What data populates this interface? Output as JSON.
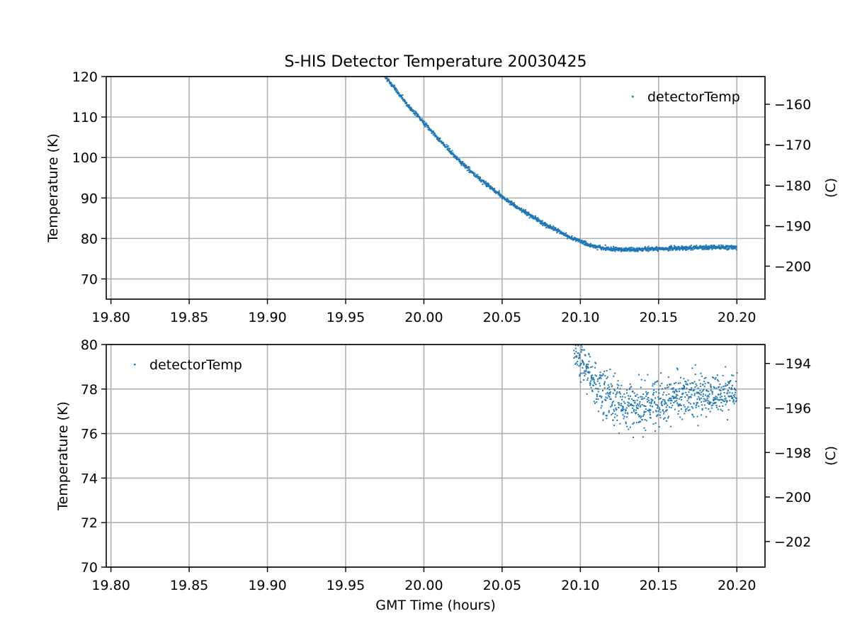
{
  "figure_title": "S-HIS Detector Temperature 20030425",
  "colors": {
    "series": "#1f77b4",
    "grid": "#b0b0b0",
    "axes": "#000000"
  },
  "chart_data": [
    {
      "type": "scatter",
      "title": "S-HIS Detector Temperature 20030425",
      "xlabel": "",
      "ylabel": "Temperature (K)",
      "y2label": "(C)",
      "xlim": [
        19.797,
        20.218
      ],
      "ylim": [
        65,
        120
      ],
      "y2lim": [
        -208.15,
        -153.15
      ],
      "xticks": [
        "19.80",
        "19.85",
        "19.90",
        "19.95",
        "20.00",
        "20.05",
        "20.10",
        "20.15",
        "20.20"
      ],
      "yticks": [
        "70",
        "80",
        "90",
        "100",
        "110",
        "120"
      ],
      "y2ticks": [
        "−160",
        "−170",
        "−180",
        "−190",
        "−200"
      ],
      "grid": true,
      "legend_position": "upper right",
      "series": [
        {
          "name": "detectorTemp",
          "marker": "dot",
          "x": [
            19.975,
            19.98,
            19.985,
            19.99,
            19.995,
            20.0,
            20.005,
            20.01,
            20.015,
            20.02,
            20.025,
            20.03,
            20.035,
            20.04,
            20.045,
            20.05,
            20.055,
            20.06,
            20.065,
            20.07,
            20.075,
            20.08,
            20.085,
            20.09,
            20.095,
            20.1,
            20.105,
            20.11,
            20.115,
            20.12,
            20.125,
            20.13,
            20.135,
            20.14,
            20.145,
            20.15,
            20.155,
            20.16,
            20.165,
            20.17,
            20.175,
            20.18,
            20.185,
            20.19,
            20.195,
            20.2
          ],
          "y": [
            120.0,
            117.8,
            115.2,
            112.8,
            110.7,
            108.6,
            106.5,
            104.3,
            102.3,
            100.2,
            98.3,
            96.6,
            94.9,
            93.4,
            91.9,
            90.4,
            89.0,
            87.6,
            86.4,
            85.2,
            84.0,
            83.0,
            82.0,
            81.0,
            80.0,
            79.3,
            78.5,
            78.0,
            77.6,
            77.4,
            77.3,
            77.2,
            77.2,
            77.3,
            77.4,
            77.5,
            77.5,
            77.6,
            77.6,
            77.7,
            77.7,
            77.8,
            77.8,
            77.8,
            77.8,
            77.9
          ]
        }
      ]
    },
    {
      "type": "scatter",
      "title": "",
      "xlabel": "GMT Time (hours)",
      "ylabel": "Temperature (K)",
      "y2label": "(C)",
      "xlim": [
        19.797,
        20.218
      ],
      "ylim": [
        70,
        80
      ],
      "y2lim": [
        -203.15,
        -193.15
      ],
      "xticks": [
        "19.80",
        "19.85",
        "19.90",
        "19.95",
        "20.00",
        "20.05",
        "20.10",
        "20.15",
        "20.20"
      ],
      "yticks": [
        "70",
        "72",
        "74",
        "76",
        "78",
        "80"
      ],
      "y2ticks": [
        "−194",
        "−196",
        "−198",
        "−200",
        "−202"
      ],
      "grid": true,
      "legend_position": "upper left",
      "series": [
        {
          "name": "detectorTemp",
          "marker": "dot",
          "x": [
            20.096,
            20.1,
            20.105,
            20.11,
            20.115,
            20.12,
            20.125,
            20.13,
            20.135,
            20.14,
            20.145,
            20.15,
            20.155,
            20.16,
            20.165,
            20.17,
            20.175,
            20.18,
            20.185,
            20.19,
            20.195,
            20.2
          ],
          "y": [
            79.8,
            79.3,
            78.7,
            78.2,
            77.8,
            77.5,
            77.3,
            77.2,
            77.2,
            77.3,
            77.4,
            77.5,
            77.5,
            77.6,
            77.6,
            77.7,
            77.7,
            77.8,
            77.8,
            77.8,
            77.8,
            77.9
          ],
          "spread": [
            0.3,
            0.4,
            0.5,
            0.5,
            0.6,
            0.6,
            0.6,
            0.6,
            0.6,
            0.5,
            0.5,
            0.5,
            0.5,
            0.5,
            0.5,
            0.5,
            0.5,
            0.5,
            0.5,
            0.5,
            0.4,
            0.4
          ]
        }
      ]
    }
  ]
}
